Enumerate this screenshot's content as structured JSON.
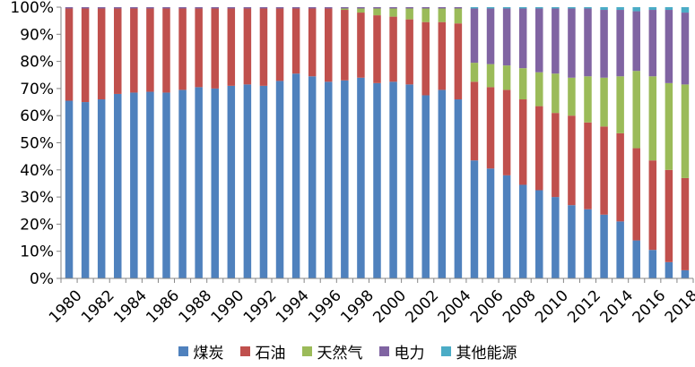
{
  "chart_data": {
    "type": "bar",
    "stacked": true,
    "percent": true,
    "categories": [
      "1980",
      "1981",
      "1982",
      "1983",
      "1984",
      "1985",
      "1986",
      "1987",
      "1988",
      "1989",
      "1990",
      "1991",
      "1992",
      "1993",
      "1994",
      "1995",
      "1996",
      "1997",
      "1998",
      "1999",
      "2000",
      "2001",
      "2002",
      "2003",
      "2004",
      "2005",
      "2006",
      "2007",
      "2008",
      "2009",
      "2010",
      "2011",
      "2012",
      "2013",
      "2014",
      "2015",
      "2016",
      "2017",
      "2018"
    ],
    "tick_labels": [
      "1980",
      "1982",
      "1984",
      "1986",
      "1988",
      "1990",
      "1992",
      "1994",
      "1996",
      "1998",
      "2000",
      "2002",
      "2004",
      "2006",
      "2008",
      "2010",
      "2012",
      "2014",
      "2016",
      "2018"
    ],
    "y_ticks": [
      "0%",
      "10%",
      "20%",
      "30%",
      "40%",
      "50%",
      "60%",
      "70%",
      "80%",
      "90%",
      "100%"
    ],
    "ylim": [
      0,
      100
    ],
    "grid": false,
    "legend_position": "bottom",
    "series": [
      {
        "name": "煤炭",
        "color": "#4F81BD",
        "values": [
          65.5,
          65.0,
          66.0,
          68.0,
          68.5,
          68.8,
          68.5,
          69.5,
          70.5,
          70.0,
          71.0,
          71.5,
          71.0,
          72.8,
          75.5,
          74.5,
          72.5,
          73.0,
          74.0,
          72.0,
          72.5,
          71.5,
          67.5,
          69.5,
          66.0,
          43.5,
          40.5,
          38.0,
          34.5,
          32.5,
          30.0,
          27.0,
          25.5,
          23.5,
          21.0,
          14.0,
          10.5,
          6.0,
          3.0
        ]
      },
      {
        "name": "石油",
        "color": "#C0504D",
        "values": [
          34.0,
          34.5,
          33.5,
          31.5,
          31.0,
          30.7,
          31.0,
          30.0,
          29.0,
          29.5,
          28.5,
          28.0,
          28.5,
          26.7,
          24.0,
          25.0,
          27.0,
          26.0,
          24.0,
          25.0,
          24.0,
          24.0,
          27.0,
          25.0,
          28.0,
          29.0,
          30.0,
          31.5,
          31.5,
          31.0,
          31.0,
          33.0,
          32.0,
          32.5,
          32.5,
          34.0,
          33.0,
          34.0,
          34.0
        ]
      },
      {
        "name": "天然气",
        "color": "#9BBB59",
        "values": [
          0.0,
          0.0,
          0.0,
          0.0,
          0.0,
          0.0,
          0.0,
          0.0,
          0.0,
          0.0,
          0.0,
          0.0,
          0.0,
          0.0,
          0.0,
          0.0,
          0.0,
          0.5,
          1.5,
          2.5,
          3.0,
          4.0,
          5.0,
          5.0,
          5.5,
          7.0,
          8.5,
          9.0,
          11.5,
          12.5,
          14.5,
          14.0,
          17.0,
          18.0,
          21.0,
          28.5,
          31.0,
          32.0,
          34.5
        ]
      },
      {
        "name": "电力",
        "color": "#8064A2",
        "values": [
          0.5,
          0.5,
          0.5,
          0.5,
          0.5,
          0.5,
          0.5,
          0.5,
          0.5,
          0.5,
          0.5,
          0.5,
          0.5,
          0.5,
          0.5,
          0.5,
          0.5,
          0.5,
          0.5,
          0.5,
          0.5,
          0.5,
          0.5,
          0.5,
          0.5,
          20.0,
          20.5,
          21.0,
          22.0,
          23.5,
          24.0,
          25.5,
          25.0,
          25.0,
          24.5,
          22.0,
          24.5,
          27.0,
          26.5
        ]
      },
      {
        "name": "其他能源",
        "color": "#4BACC6",
        "values": [
          0.0,
          0.0,
          0.0,
          0.0,
          0.0,
          0.0,
          0.0,
          0.0,
          0.0,
          0.0,
          0.0,
          0.0,
          0.0,
          0.0,
          0.0,
          0.0,
          0.0,
          0.0,
          0.0,
          0.0,
          0.0,
          0.0,
          0.0,
          0.0,
          0.0,
          0.5,
          0.5,
          0.5,
          0.5,
          0.5,
          0.5,
          0.5,
          0.5,
          1.0,
          1.0,
          1.5,
          1.0,
          1.0,
          2.0
        ]
      }
    ]
  }
}
